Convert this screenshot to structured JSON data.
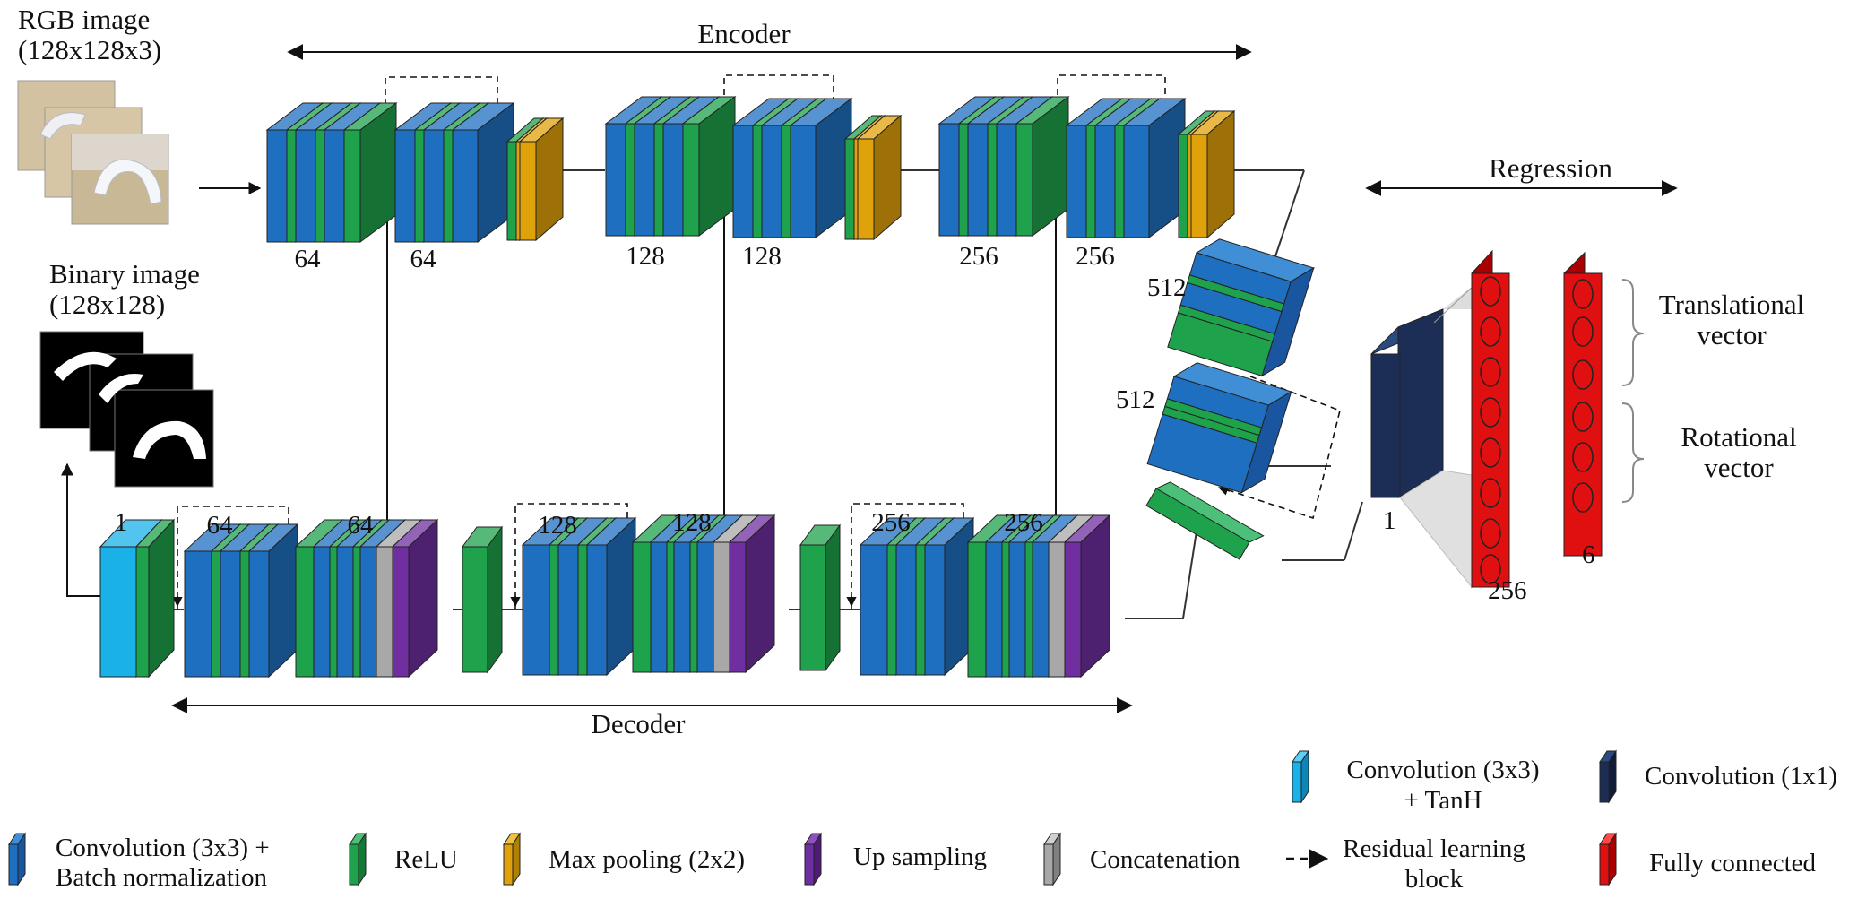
{
  "inputs": {
    "rgb_title": "RGB image",
    "rgb_size": "(128x128x3)",
    "binary_title": "Binary image",
    "binary_size": "(128x128)"
  },
  "sections": {
    "encoder": "Encoder",
    "decoder": "Decoder",
    "regression": "Regression"
  },
  "encoder_filters": [
    "64",
    "64",
    "128",
    "128",
    "256",
    "256"
  ],
  "bottleneck_filters": [
    "512",
    "512"
  ],
  "decoder_filters": [
    "1",
    "64",
    "64",
    "128",
    "128",
    "256",
    "256"
  ],
  "regression_values": {
    "conv1x1": "1",
    "fc1": "256",
    "fc2": "6",
    "translational": [
      "Translational",
      "vector"
    ],
    "rotational": [
      "Rotational",
      "vector"
    ]
  },
  "legend": {
    "conv_tanh": [
      "Convolution (3x3)",
      "+ TanH"
    ],
    "conv_1x1": "Convolution (1x1)",
    "conv_bn": [
      "Convolution (3x3) +",
      "Batch normalization"
    ],
    "relu": "ReLU",
    "max_pool": "Max pooling (2x2)",
    "up_sampling": "Up sampling",
    "concatenation": "Concatenation",
    "residual": [
      "Residual learning",
      "block"
    ],
    "fully_connected": "Fully connected"
  },
  "colors": {
    "conv_bn": "#1f6fc0",
    "relu": "#1fa24c",
    "max_pool": "#e0a20a",
    "up_sampling": "#6f2fa0",
    "concatenation": "#a8a8a8",
    "conv_tanh": "#1ab0e8",
    "conv_1x1": "#1c2e55",
    "fully_connected": "#e01010"
  }
}
